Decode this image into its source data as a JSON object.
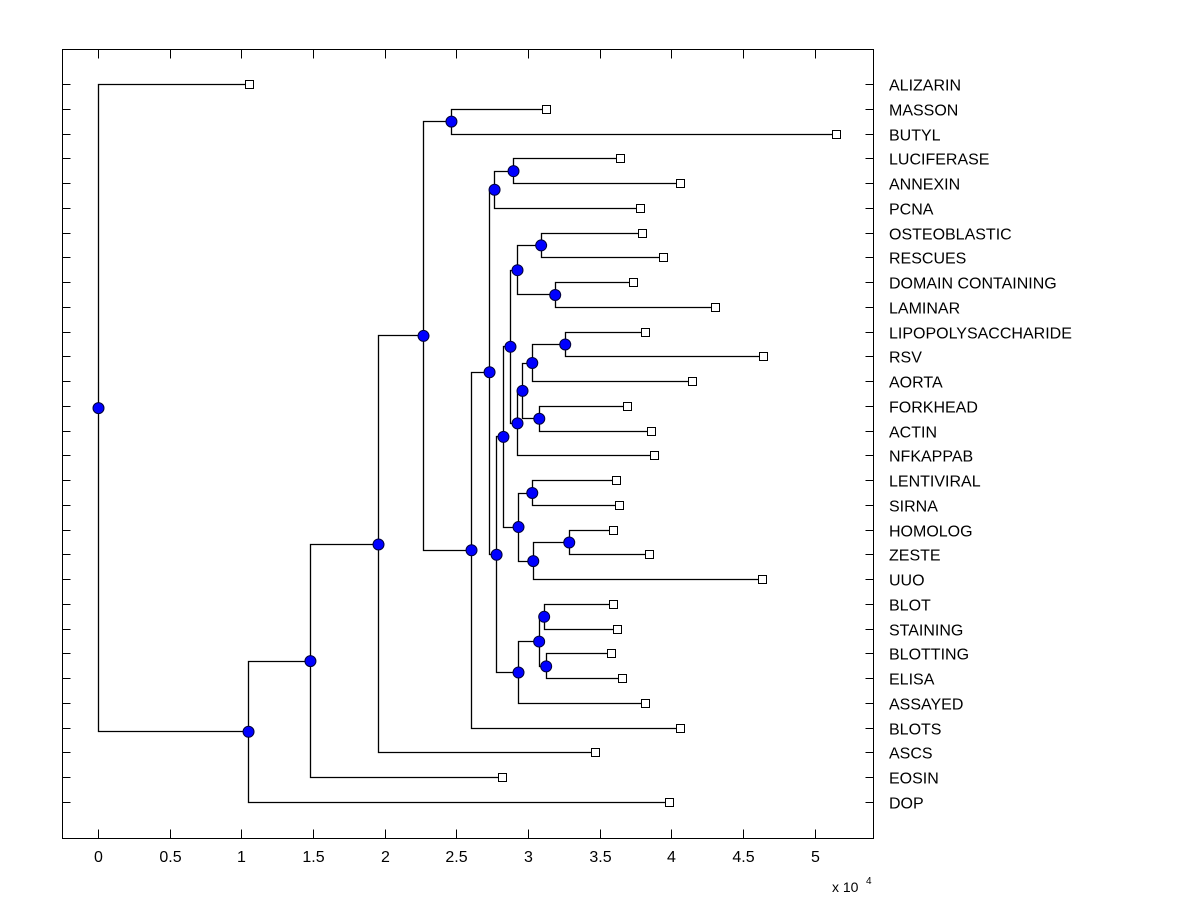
{
  "chart_data": {
    "type": "dendrogram",
    "title": "",
    "xlabel": "",
    "ylabel": "",
    "x_multiplier_label": "x 10",
    "x_multiplier_exponent": "4",
    "xlim": [
      -0.25,
      5.4
    ],
    "xticks": [
      0,
      0.5,
      1,
      1.5,
      2,
      2.5,
      3,
      3.5,
      4,
      4.5,
      5
    ],
    "xtick_labels": [
      "0",
      "0.5",
      "1",
      "1.5",
      "2",
      "2.5",
      "3",
      "3.5",
      "4",
      "4.5",
      "5"
    ],
    "grid": false,
    "node_marker_color": "#0000ff",
    "leaf_marker": "open-square",
    "leaves": [
      {
        "label": "ALIZARIN",
        "x": 1.054
      },
      {
        "label": "MASSON",
        "x": 3.126
      },
      {
        "label": "BUTYL",
        "x": 5.15
      },
      {
        "label": "LUCIFERASE",
        "x": 3.643
      },
      {
        "label": "ANNEXIN",
        "x": 4.061
      },
      {
        "label": "PCNA",
        "x": 3.782
      },
      {
        "label": "OSTEOBLASTIC",
        "x": 3.796
      },
      {
        "label": "RESCUES",
        "x": 3.943
      },
      {
        "label": "DOMAIN CONTAINING",
        "x": 3.733
      },
      {
        "label": "LAMINAR",
        "x": 4.306
      },
      {
        "label": "LIPOPOLYSACCHARIDE",
        "x": 3.817
      },
      {
        "label": "RSV",
        "x": 4.641
      },
      {
        "label": "AORTA",
        "x": 4.145
      },
      {
        "label": "FORKHEAD",
        "x": 3.692
      },
      {
        "label": "ACTIN",
        "x": 3.859
      },
      {
        "label": "NFKAPPAB",
        "x": 3.88
      },
      {
        "label": "LENTIVIRAL",
        "x": 3.615
      },
      {
        "label": "SIRNA",
        "x": 3.636
      },
      {
        "label": "HOMOLOG",
        "x": 3.594
      },
      {
        "label": "ZESTE",
        "x": 3.845
      },
      {
        "label": "UUO",
        "x": 4.634
      },
      {
        "label": "BLOT",
        "x": 3.594
      },
      {
        "label": "STAINING",
        "x": 3.622
      },
      {
        "label": "BLOTTING",
        "x": 3.58
      },
      {
        "label": "ELISA",
        "x": 3.657
      },
      {
        "label": "ASSAYED",
        "x": 3.817
      },
      {
        "label": "BLOTS",
        "x": 4.061
      },
      {
        "label": "ASCS",
        "x": 3.468
      },
      {
        "label": "EOSIN",
        "x": 2.819
      },
      {
        "label": "DOP",
        "x": 3.985
      }
    ],
    "nodes": [
      {
        "id": "n_masson_butyl",
        "x": 2.463,
        "children": [
          "L1",
          "L2"
        ]
      },
      {
        "id": "n_luc_ann",
        "x": 2.896,
        "children": [
          "L3",
          "L4"
        ]
      },
      {
        "id": "n_luc_pcna",
        "x": 2.764,
        "children": [
          "n_luc_ann",
          "L5"
        ]
      },
      {
        "id": "n_ost_res",
        "x": 3.089,
        "children": [
          "L6",
          "L7"
        ]
      },
      {
        "id": "n_dom_lam",
        "x": 3.187,
        "children": [
          "L8",
          "L9"
        ]
      },
      {
        "id": "n_ost_lam",
        "x": 2.924,
        "children": [
          "n_ost_res",
          "n_dom_lam"
        ]
      },
      {
        "id": "n_lipo_rsv",
        "x": 3.257,
        "children": [
          "L10",
          "L11"
        ]
      },
      {
        "id": "n_lipo_aorta",
        "x": 3.027,
        "children": [
          "n_lipo_rsv",
          "L12"
        ]
      },
      {
        "id": "n_fork_actin",
        "x": 3.076,
        "children": [
          "L13",
          "L14"
        ]
      },
      {
        "id": "n_lipo_actin",
        "x": 2.959,
        "children": [
          "n_lipo_aorta",
          "n_fork_actin"
        ]
      },
      {
        "id": "n_lipo_nfk",
        "x": 2.924,
        "children": [
          "n_lipo_actin",
          "L15"
        ]
      },
      {
        "id": "n_ost_nfk",
        "x": 2.875,
        "children": [
          "n_ost_lam",
          "n_lipo_nfk"
        ]
      },
      {
        "id": "n_lent_sirna",
        "x": 3.027,
        "children": [
          "L16",
          "L17"
        ]
      },
      {
        "id": "n_hom_zeste",
        "x": 3.285,
        "children": [
          "L18",
          "L19"
        ]
      },
      {
        "id": "n_hom_uuo",
        "x": 3.034,
        "children": [
          "n_hom_zeste",
          "L20"
        ]
      },
      {
        "id": "n_lent_uuo",
        "x": 2.931,
        "children": [
          "n_lent_sirna",
          "n_hom_uuo"
        ]
      },
      {
        "id": "n_ost_uuo",
        "x": 2.826,
        "children": [
          "n_ost_nfk",
          "n_lent_uuo"
        ]
      },
      {
        "id": "n_blot_stain",
        "x": 3.11,
        "children": [
          "L21",
          "L22"
        ]
      },
      {
        "id": "n_blotting_elisa",
        "x": 3.124,
        "children": [
          "L23",
          "L24"
        ]
      },
      {
        "id": "n_blot_elisa",
        "x": 3.075,
        "children": [
          "n_blot_stain",
          "n_blotting_elisa"
        ]
      },
      {
        "id": "n_blot_assayed",
        "x": 2.931,
        "children": [
          "n_blot_elisa",
          "L25"
        ]
      },
      {
        "id": "n_ost_assayed",
        "x": 2.778,
        "children": [
          "n_ost_uuo",
          "n_blot_assayed"
        ]
      },
      {
        "id": "n_luc_assayed",
        "x": 2.729,
        "children": [
          "n_luc_pcna",
          "n_ost_assayed"
        ]
      },
      {
        "id": "n_luc_blots",
        "x": 2.603,
        "children": [
          "n_luc_assayed",
          "L26"
        ]
      },
      {
        "id": "n_masson_blots",
        "x": 2.268,
        "children": [
          "n_masson_butyl",
          "n_luc_blots"
        ]
      },
      {
        "id": "n_masson_ascs",
        "x": 1.954,
        "children": [
          "n_masson_blots",
          "L27"
        ]
      },
      {
        "id": "n_masson_eosin",
        "x": 1.479,
        "children": [
          "n_masson_ascs",
          "L28"
        ]
      },
      {
        "id": "n_masson_dop",
        "x": 1.047,
        "children": [
          "n_masson_eosin",
          "L29"
        ]
      },
      {
        "id": "root",
        "x": 0,
        "children": [
          "L0",
          "n_masson_dop"
        ]
      }
    ]
  }
}
